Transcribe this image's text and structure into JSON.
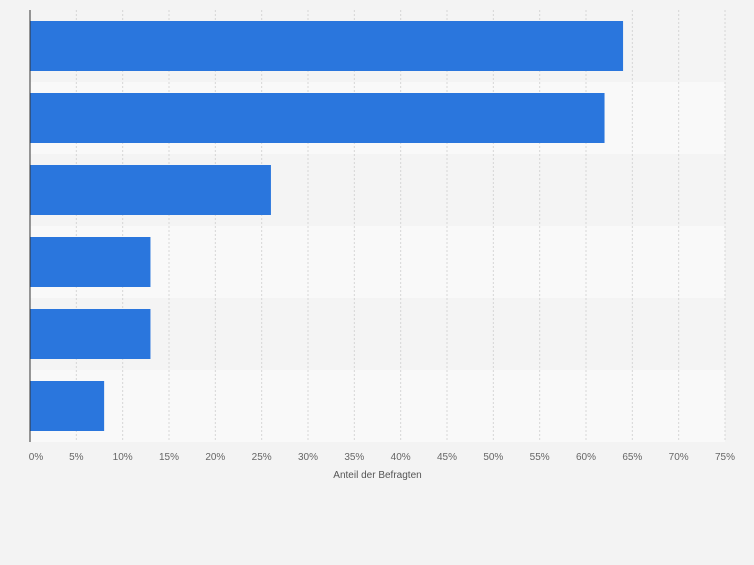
{
  "chart_data": {
    "type": "bar",
    "orientation": "horizontal",
    "categories": [
      "",
      "",
      "",
      "",
      "",
      ""
    ],
    "values": [
      64,
      62,
      26,
      13,
      13,
      8
    ],
    "xlim": [
      0,
      75
    ],
    "x_ticks": [
      0,
      5,
      10,
      15,
      20,
      25,
      30,
      35,
      40,
      45,
      50,
      55,
      60,
      65,
      70,
      75
    ],
    "x_tick_suffix": "%",
    "xlabel": "Anteil der Befragten",
    "ylabel": "",
    "title": "",
    "grid": true,
    "bar_color": "#2a76dd",
    "band_colors": [
      "#f4f4f4",
      "#f9f9f9"
    ]
  }
}
